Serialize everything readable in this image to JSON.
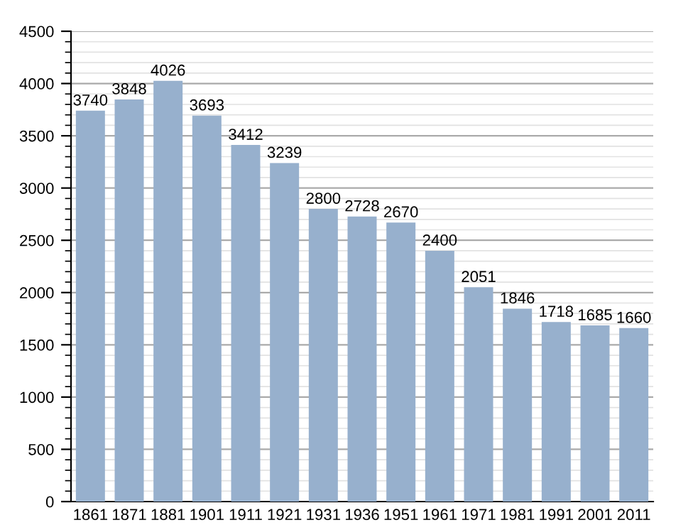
{
  "chart_data": {
    "type": "bar",
    "categories": [
      "1861",
      "1871",
      "1881",
      "1901",
      "1911",
      "1921",
      "1931",
      "1936",
      "1951",
      "1961",
      "1971",
      "1981",
      "1991",
      "2001",
      "2011"
    ],
    "values": [
      3740,
      3848,
      4026,
      3693,
      3412,
      3239,
      2800,
      2728,
      2670,
      2400,
      2051,
      1846,
      1718,
      1685,
      1660
    ],
    "color": "#97b0cd",
    "ylim": [
      0,
      4500
    ],
    "yticks": [
      0,
      500,
      1000,
      1500,
      2000,
      2500,
      3000,
      3500,
      4000,
      4500
    ],
    "grid": "y",
    "data_labels": true
  }
}
